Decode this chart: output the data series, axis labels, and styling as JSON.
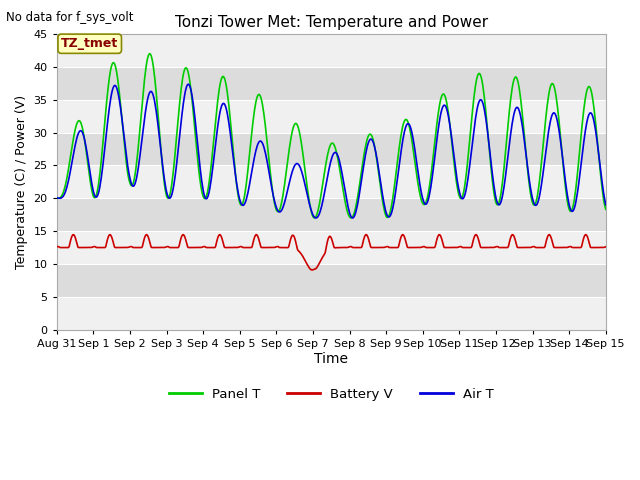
{
  "title": "Tonzi Tower Met: Temperature and Power",
  "xlabel": "Time",
  "ylabel": "Temperature (C) / Power (V)",
  "ylim": [
    0,
    45
  ],
  "yticks": [
    0,
    5,
    10,
    15,
    20,
    25,
    30,
    35,
    40,
    45
  ],
  "note": "No data for f_sys_volt",
  "annotation_label": "TZ_tmet",
  "legend": [
    {
      "label": "Panel T",
      "color": "#00cc00"
    },
    {
      "label": "Battery V",
      "color": "#cc0000"
    },
    {
      "label": "Air T",
      "color": "#0000cc"
    }
  ],
  "x_tick_labels": [
    "Aug 31",
    "Sep 1",
    "Sep 2",
    "Sep 3",
    "Sep 4",
    "Sep 5",
    "Sep 6",
    "Sep 7",
    "Sep 8",
    "Sep 9",
    "Sep 10",
    "Sep 11",
    "Sep 12",
    "Sep 13",
    "Sep 14",
    "Sep 15"
  ],
  "panel_color": "#00cc00",
  "air_color": "#0000dd",
  "battery_color": "#cc0000",
  "band_colors": [
    "#f0f0f0",
    "#dcdcdc"
  ],
  "grid_color": "#ffffff"
}
